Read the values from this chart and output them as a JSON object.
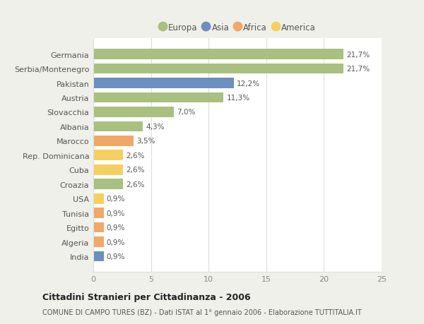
{
  "categories": [
    "India",
    "Algeria",
    "Egitto",
    "Tunisia",
    "USA",
    "Croazia",
    "Cuba",
    "Rep. Dominicana",
    "Marocco",
    "Albania",
    "Slovacchia",
    "Austria",
    "Pakistan",
    "Serbia/Montenegro",
    "Germania"
  ],
  "values": [
    0.9,
    0.9,
    0.9,
    0.9,
    0.9,
    2.6,
    2.6,
    2.6,
    3.5,
    4.3,
    7.0,
    11.3,
    12.2,
    21.7,
    21.7
  ],
  "labels": [
    "0,9%",
    "0,9%",
    "0,9%",
    "0,9%",
    "0,9%",
    "2,6%",
    "2,6%",
    "2,6%",
    "3,5%",
    "4,3%",
    "7,0%",
    "11,3%",
    "12,2%",
    "21,7%",
    "21,7%"
  ],
  "colors": [
    "#6b8fbe",
    "#f0a868",
    "#f0a868",
    "#f0a868",
    "#f5d060",
    "#a8c080",
    "#f5d060",
    "#f5d060",
    "#f0a868",
    "#a8c080",
    "#a8c080",
    "#a8c080",
    "#6b8fbe",
    "#a8c080",
    "#a8c080"
  ],
  "legend_labels": [
    "Europa",
    "Asia",
    "Africa",
    "America"
  ],
  "legend_colors": [
    "#a8c080",
    "#6b8fbe",
    "#f0a868",
    "#f5d060"
  ],
  "title": "Cittadini Stranieri per Cittadinanza - 2006",
  "subtitle": "COMUNE DI CAMPO TURES (BZ) - Dati ISTAT al 1° gennaio 2006 - Elaborazione TUTTITALIA.IT",
  "xlim": [
    0,
    25
  ],
  "xticks": [
    0,
    5,
    10,
    15,
    20,
    25
  ],
  "background_color": "#f0f0eb",
  "plot_bg_color": "#ffffff"
}
